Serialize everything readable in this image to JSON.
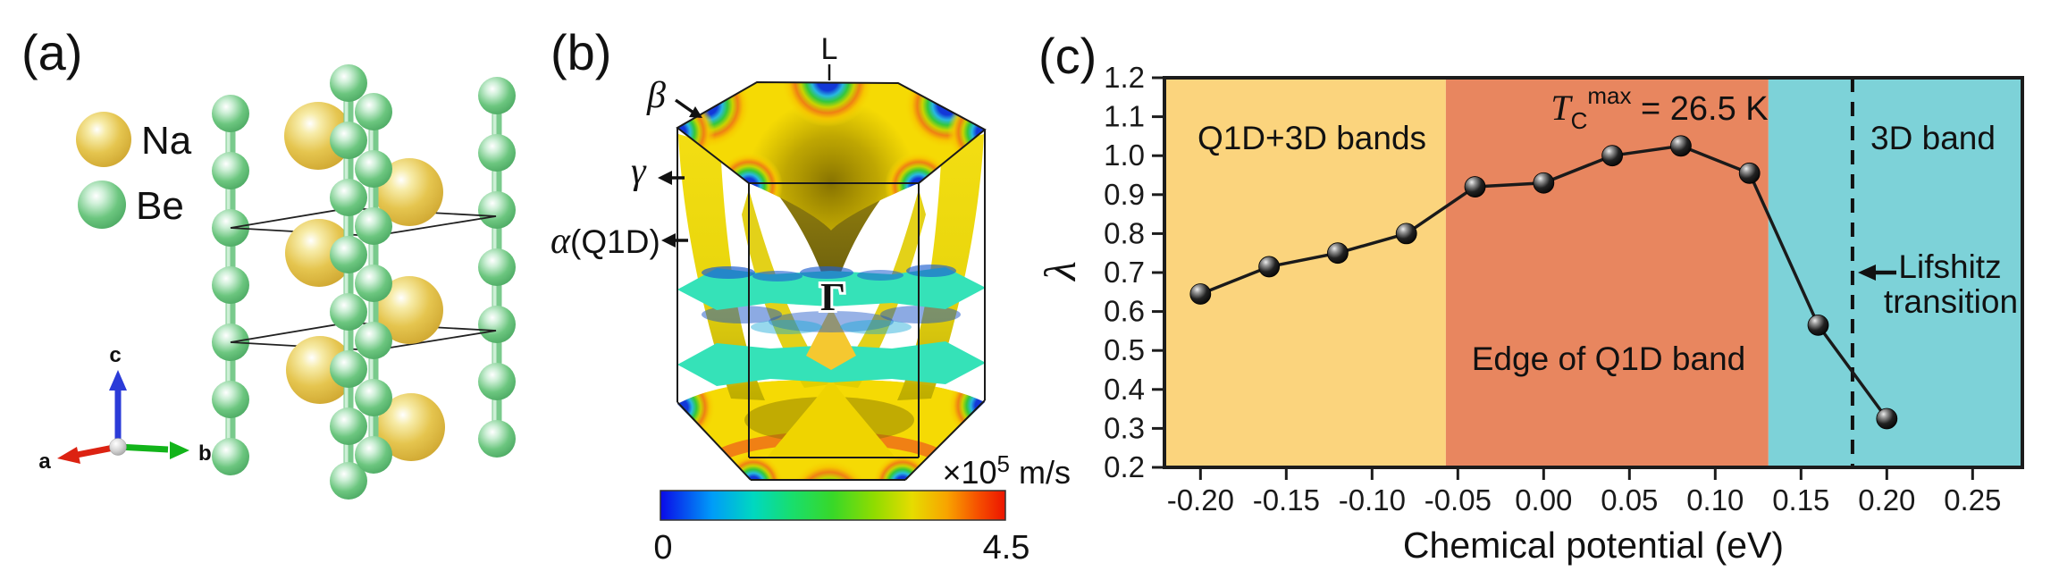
{
  "figure": {
    "panel_a": {
      "label": "(a)",
      "legend": {
        "na": "Na",
        "be": "Be"
      },
      "axis_labels": {
        "a": "a",
        "b": "b",
        "c": "c"
      },
      "colors": {
        "na": "#E3C24B",
        "be": "#5FBE74"
      }
    },
    "panel_b": {
      "label": "(b)",
      "bz_point_top": "L",
      "band_beta": "β",
      "band_gamma": "γ",
      "band_alpha": "α",
      "band_alpha_suffix": "(Q1D)",
      "gamma_point": "Γ",
      "colorbar": {
        "min": "0",
        "max": "4.5",
        "unit_prefix": "×10",
        "unit_exp": "5",
        "unit_suffix": " m/s"
      }
    },
    "panel_c": {
      "label": "(c)"
    }
  },
  "chart_data": {
    "type": "line",
    "x": [
      -0.2,
      -0.16,
      -0.12,
      -0.08,
      -0.04,
      0.0,
      0.04,
      0.08,
      0.12,
      0.16,
      0.2
    ],
    "y": [
      0.645,
      0.715,
      0.75,
      0.8,
      0.92,
      0.93,
      1.0,
      1.025,
      0.955,
      0.565,
      0.325
    ],
    "xlabel": "Chemical potential (eV)",
    "ylabel": "λ",
    "xlim": [
      -0.221,
      0.279
    ],
    "ylim": [
      0.2,
      1.2
    ],
    "xticks": [
      -0.2,
      -0.15,
      -0.1,
      -0.05,
      0.0,
      0.05,
      0.1,
      0.15,
      0.2,
      0.25
    ],
    "yticks": [
      0.2,
      0.3,
      0.4,
      0.5,
      0.6,
      0.7,
      0.8,
      0.9,
      1.0,
      1.1,
      1.2
    ],
    "line_color": "#1a1a1a",
    "marker": "black-sphere",
    "grid": false,
    "regions": [
      {
        "label": "Q1D+3D bands",
        "from": -0.221,
        "to": -0.057,
        "color": "#FBD47D"
      },
      {
        "label": "Edge of Q1D band",
        "from": -0.057,
        "to": 0.131,
        "color": "#E8865F"
      },
      {
        "label": "3D band",
        "from": 0.131,
        "to": 0.279,
        "color": "#7DD2D8"
      }
    ],
    "vline": {
      "x": 0.18,
      "style": "dashed",
      "label_line1": "Lifshitz",
      "label_line2": "transition"
    },
    "annotation_tc": {
      "symbol": "T",
      "sub": "C",
      "sup": "max",
      "value": " = 26.5 K"
    }
  }
}
